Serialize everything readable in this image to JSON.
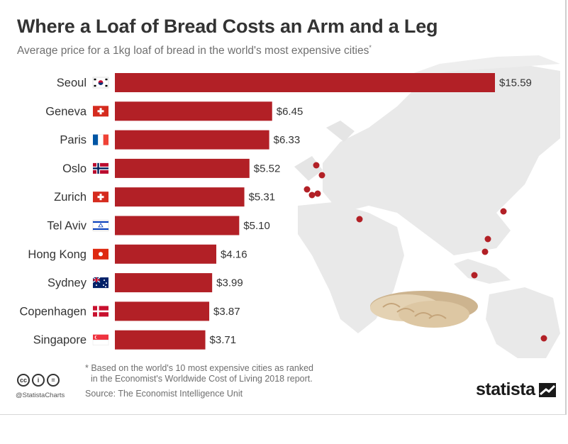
{
  "header": {
    "title": "Where a Loaf of Bread Costs an Arm and a Leg",
    "subtitle": "Average price for a 1kg loaf of bread in the world's most expensive cities",
    "subtitle_mark": "*"
  },
  "chart_data": {
    "type": "bar",
    "orientation": "horizontal",
    "title": "Where a Loaf of Bread Costs an Arm and a Leg",
    "subtitle": "Average price for a 1kg loaf of bread in the world's most expensive cities*",
    "categories": [
      "Seoul",
      "Geneva",
      "Paris",
      "Oslo",
      "Zurich",
      "Tel Aviv",
      "Hong Kong",
      "Sydney",
      "Copenhagen",
      "Singapore"
    ],
    "values": [
      15.59,
      6.45,
      6.33,
      5.52,
      5.31,
      5.1,
      4.16,
      3.99,
      3.87,
      3.71
    ],
    "value_labels": [
      "$15.59",
      "$6.45",
      "$6.33",
      "$5.52",
      "$5.31",
      "$5.10",
      "$4.16",
      "$3.99",
      "$3.87",
      "$3.71"
    ],
    "flags": [
      "south-korea-flag",
      "switzerland-flag",
      "france-flag",
      "norway-flag",
      "switzerland-flag",
      "israel-flag",
      "hong-kong-flag",
      "australia-flag",
      "denmark-flag",
      "singapore-flag"
    ],
    "bar_color": "#b22026",
    "xlim": [
      0,
      15.59
    ],
    "grid": false,
    "background": "world-map"
  },
  "footer": {
    "note_line1": "* Based on the world's 10 most expensive cities as ranked",
    "note_line2": "in the Economist's Worldwide Cost of Living 2018 report.",
    "source": "Source: The Economist Intelligence Unit",
    "handle": "@StatistaCharts",
    "license_icons": [
      "cc-icon",
      "by-icon",
      "nd-icon"
    ],
    "license_glyphs": [
      "cc",
      "i",
      "="
    ],
    "brand": "statista",
    "brand_icon": "statista-logo-icon"
  },
  "colors": {
    "bar": "#b22026",
    "map": "#e9e9e9",
    "dot": "#b22026",
    "title": "#333333",
    "subtitle": "#6f6f6f"
  }
}
